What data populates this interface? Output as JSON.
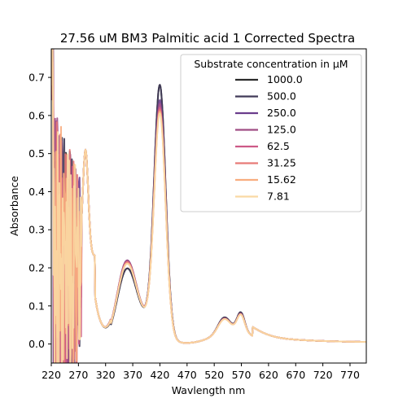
{
  "chart_data": {
    "type": "line",
    "title": "27.56 uM BM3 Palmitic acid 1 Corrected Spectra",
    "xlabel": "Wavlength nm",
    "ylabel": "Absorbance",
    "xlim": [
      220,
      800
    ],
    "ylim": [
      -0.05,
      0.775
    ],
    "xticks": [
      220,
      270,
      320,
      370,
      420,
      470,
      520,
      570,
      620,
      670,
      720,
      770
    ],
    "yticks": [
      0.0,
      0.1,
      0.2,
      0.3,
      0.4,
      0.5,
      0.6,
      0.7
    ],
    "ytick_labels": [
      "0.0",
      "0.1",
      "0.2",
      "0.3",
      "0.4",
      "0.5",
      "0.6",
      "0.7"
    ],
    "grid": false,
    "legend": {
      "title": "Substrate concentration in μM",
      "placement": "top-right"
    },
    "series": [
      {
        "name": "1000.0",
        "color": "#2b2b2b",
        "peak": 0.7,
        "soret_shoulder": 0.185,
        "q_band": 0.07
      },
      {
        "name": "500.0",
        "color": "#403a58",
        "peak": 0.7,
        "soret_shoulder": 0.185,
        "q_band": 0.07
      },
      {
        "name": "250.0",
        "color": "#6a3d8c",
        "peak": 0.66,
        "soret_shoulder": 0.21,
        "q_band": 0.065
      },
      {
        "name": "125.0",
        "color": "#a04e85",
        "peak": 0.65,
        "soret_shoulder": 0.21,
        "q_band": 0.065
      },
      {
        "name": "62.5",
        "color": "#cd5a87",
        "peak": 0.64,
        "soret_shoulder": 0.205,
        "q_band": 0.064
      },
      {
        "name": "31.25",
        "color": "#e87a78",
        "peak": 0.635,
        "soret_shoulder": 0.205,
        "q_band": 0.063
      },
      {
        "name": "15.62",
        "color": "#f8ad7f",
        "peak": 0.63,
        "soret_shoulder": 0.2,
        "q_band": 0.062
      },
      {
        "name": "7.81",
        "color": "#fad9a3",
        "peak": 0.625,
        "soret_shoulder": 0.2,
        "q_band": 0.062
      }
    ]
  }
}
